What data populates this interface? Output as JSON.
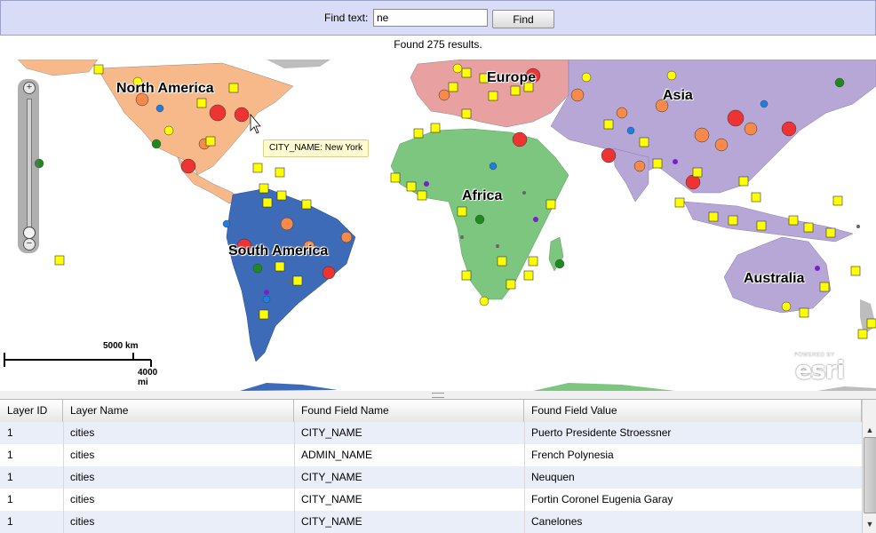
{
  "find": {
    "label": "Find text:",
    "value": "ne",
    "button_label": "Find"
  },
  "status": "Found 275 results.",
  "map": {
    "labels": {
      "north_america": "North America",
      "south_america": "South America",
      "europe": "Europe",
      "africa": "Africa",
      "asia": "Asia",
      "australia": "Australia"
    },
    "tooltip": "CITY_NAME: New York",
    "scale": {
      "km": "5000 km",
      "mi": "4000 mi"
    },
    "logo": {
      "powered": "POWERED BY",
      "name": "esri"
    },
    "zoom": {
      "plus": "+",
      "minus": "−"
    },
    "colors": {
      "north_america": "#f7b98a",
      "south_america": "#3d6bb8",
      "africa": "#7dc67f",
      "asia": "#b7a7d6",
      "australia": "#b7a7d6",
      "other_land": "#bdbdbd",
      "city_marker": "#ffff00"
    }
  },
  "grid": {
    "columns": [
      "Layer ID",
      "Layer Name",
      "Found Field Name",
      "Found Field Value"
    ],
    "rows": [
      [
        "1",
        "cities",
        "CITY_NAME",
        "Puerto Presidente Stroessner"
      ],
      [
        "1",
        "cities",
        "ADMIN_NAME",
        "French Polynesia"
      ],
      [
        "1",
        "cities",
        "CITY_NAME",
        "Neuquen"
      ],
      [
        "1",
        "cities",
        "CITY_NAME",
        "Fortin Coronel Eugenia Garay"
      ],
      [
        "1",
        "cities",
        "CITY_NAME",
        "Canelones"
      ]
    ],
    "scroll_up": "▲",
    "scroll_down": "▼"
  }
}
